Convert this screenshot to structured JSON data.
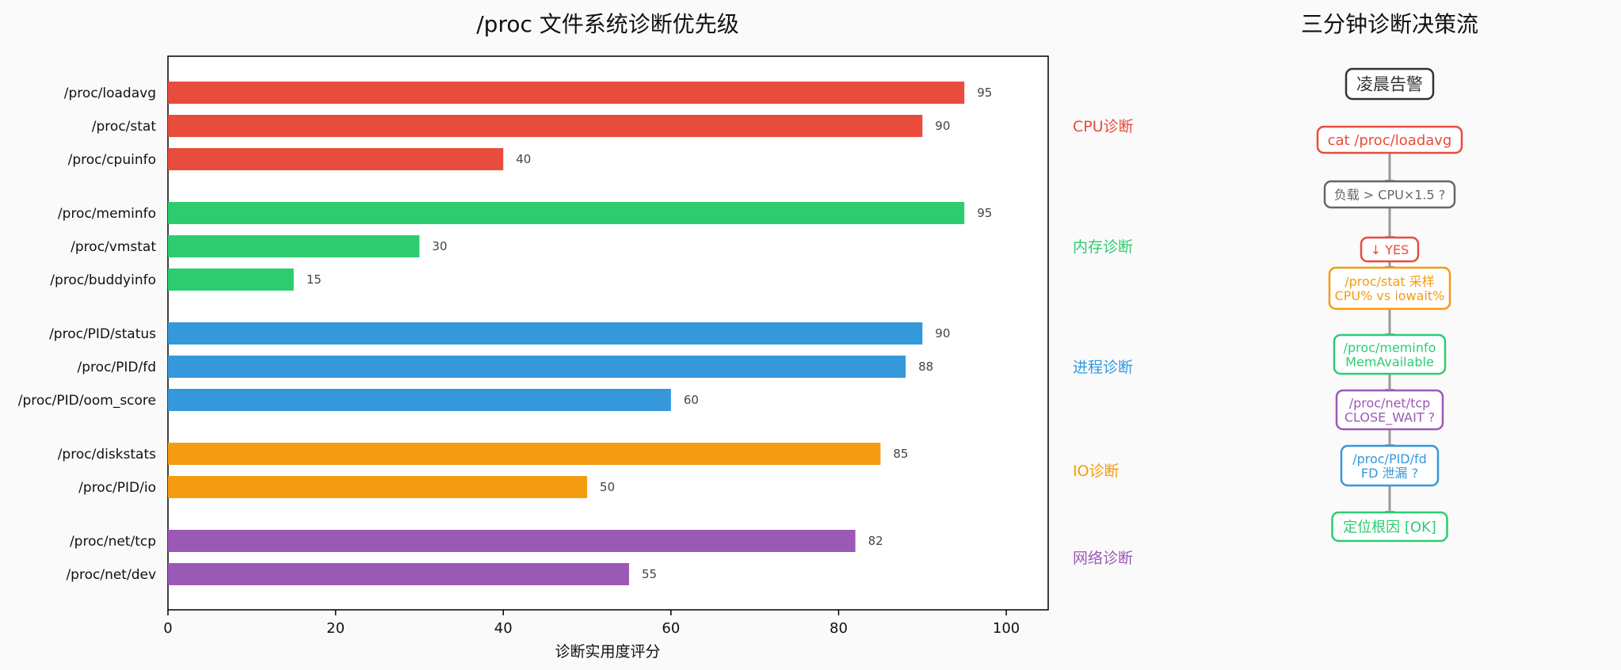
{
  "chart_data": {
    "type": "bar",
    "orientation": "horizontal",
    "title": "/proc 文件系统诊断优先级",
    "xlabel": "诊断实用度评分",
    "ylabel": "",
    "xlim": [
      0,
      105
    ],
    "xticks": [
      0,
      20,
      40,
      60,
      80,
      100
    ],
    "grid": false,
    "groups": [
      {
        "label": "CPU诊断",
        "color": "#e74c3c",
        "items": [
          {
            "name": "/proc/loadavg",
            "value": 95
          },
          {
            "name": "/proc/stat",
            "value": 90
          },
          {
            "name": "/proc/cpuinfo",
            "value": 40
          }
        ]
      },
      {
        "label": "内存诊断",
        "color": "#2ecc71",
        "items": [
          {
            "name": "/proc/meminfo",
            "value": 95
          },
          {
            "name": "/proc/vmstat",
            "value": 30
          },
          {
            "name": "/proc/buddyinfo",
            "value": 15
          }
        ]
      },
      {
        "label": "进程诊断",
        "color": "#3498db",
        "items": [
          {
            "name": "/proc/PID/status",
            "value": 90
          },
          {
            "name": "/proc/PID/fd",
            "value": 88
          },
          {
            "name": "/proc/PID/oom_score",
            "value": 60
          }
        ]
      },
      {
        "label": "IO诊断",
        "color": "#f39c12",
        "items": [
          {
            "name": "/proc/diskstats",
            "value": 85
          },
          {
            "name": "/proc/PID/io",
            "value": 50
          }
        ]
      },
      {
        "label": "网络诊断",
        "color": "#9b59b6",
        "items": [
          {
            "name": "/proc/net/tcp",
            "value": 82
          },
          {
            "name": "/proc/net/dev",
            "value": 55
          }
        ]
      }
    ]
  },
  "flow": {
    "title": "三分钟诊断决策流",
    "arrow_color": "#999999",
    "nodes": [
      {
        "lines": [
          "凌晨告警"
        ],
        "color": "#333333"
      },
      {
        "lines": [
          "cat /proc/loadavg"
        ],
        "color": "#e74c3c"
      },
      {
        "lines": [
          "负载 > CPU×1.5 ?"
        ],
        "color": "#666666"
      },
      {
        "lines": [
          "↓ YES"
        ],
        "color": "#e74c3c"
      },
      {
        "lines": [
          "/proc/stat 采样",
          "CPU% vs iowait%"
        ],
        "color": "#f39c12"
      },
      {
        "lines": [
          "/proc/meminfo",
          "MemAvailable"
        ],
        "color": "#2ecc71"
      },
      {
        "lines": [
          "/proc/net/tcp",
          "CLOSE_WAIT ?"
        ],
        "color": "#9b59b6"
      },
      {
        "lines": [
          "/proc/PID/fd",
          "FD 泄漏 ?"
        ],
        "color": "#3498db"
      },
      {
        "lines": [
          "定位根因 [OK]"
        ],
        "color": "#2ecc71"
      }
    ]
  }
}
